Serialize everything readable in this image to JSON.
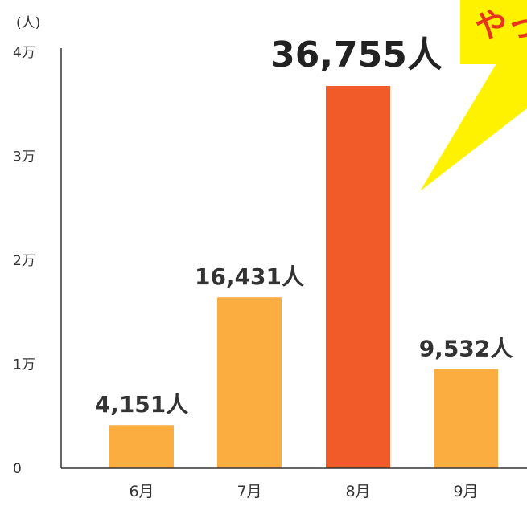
{
  "chart_data": {
    "type": "bar",
    "unit_label": "(人)",
    "categories": [
      "6月",
      "7月",
      "8月",
      "9月"
    ],
    "values": [
      4151,
      16431,
      36755,
      9532
    ],
    "value_labels": [
      "4,151人",
      "16,431人",
      "36,755人",
      "9,532人"
    ],
    "highlight_index": 2,
    "ylim": [
      0,
      40000
    ],
    "yticks": [
      0,
      10000,
      20000,
      30000,
      40000
    ],
    "ytick_labels": [
      "0",
      "1万",
      "2万",
      "3万",
      "4万"
    ],
    "grid": false,
    "callout_text": "やっ"
  },
  "colors": {
    "bar": "#fbad3f",
    "bar_highlight": "#f15a29",
    "burst": "#fff200",
    "burst_text": "#e8331e",
    "axis": "#333333"
  }
}
